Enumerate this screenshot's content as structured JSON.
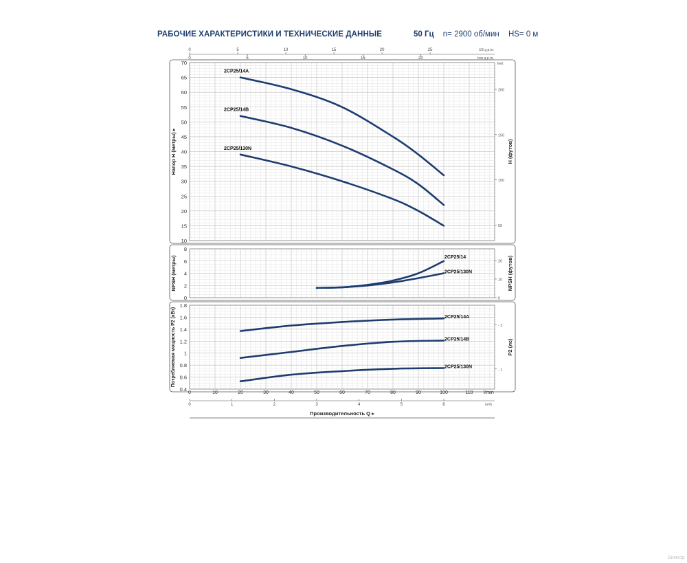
{
  "header": {
    "title": "РАБОЧИЕ ХАРАКТЕРИСТИКИ И ТЕХНИЧЕСКИЕ ДАННЫЕ",
    "frequency": "50 Гц",
    "speed": "n= 2900 об/мин",
    "hs": "HS= 0 м"
  },
  "watermark": "Вимхор",
  "colors": {
    "curve": "#1d3d6f",
    "grid": "#c9c9c9",
    "frame": "#555555",
    "text": "#1d3d6f"
  },
  "top_axes": {
    "us_gpm": {
      "label": "US g.p.m.",
      "ticks": [
        "0",
        "5",
        "10",
        "15",
        "20",
        "25"
      ]
    },
    "imp_gpm": {
      "label": "Imp g.p.m.",
      "ticks": [
        "0",
        "5",
        "10",
        "15",
        "20"
      ]
    }
  },
  "bottom_axes": {
    "lmin": {
      "label": "l/min",
      "ticks": [
        "0",
        "10",
        "20",
        "30",
        "40",
        "50",
        "60",
        "70",
        "80",
        "90",
        "100",
        "110"
      ]
    },
    "m3h": {
      "label": "m³/h",
      "ticks": [
        "0",
        "1",
        "2",
        "3",
        "4",
        "5",
        "6"
      ]
    },
    "xlabel": "Производительность Q"
  },
  "chart_data": [
    {
      "type": "line",
      "panel": "head",
      "ylabel": "Напор H (метры)",
      "y2label": "H (футов)",
      "y2unit": "feet",
      "ylim": [
        10,
        70
      ],
      "yticks": [
        "10",
        "15",
        "20",
        "25",
        "30",
        "35",
        "40",
        "45",
        "50",
        "55",
        "60",
        "65",
        "70"
      ],
      "y2ticks": [
        "50",
        "100",
        "150",
        "200"
      ],
      "xlim": [
        0,
        120
      ],
      "grid": true,
      "series": [
        {
          "name": "2CP25/14A",
          "x": [
            20,
            40,
            60,
            80,
            90,
            100
          ],
          "y": [
            65,
            61,
            55,
            45,
            39,
            32
          ]
        },
        {
          "name": "2CP25/14B",
          "x": [
            20,
            40,
            60,
            80,
            90,
            100
          ],
          "y": [
            52,
            48,
            42,
            34,
            29,
            22
          ]
        },
        {
          "name": "2CP25/130N",
          "x": [
            20,
            40,
            60,
            80,
            90,
            100
          ],
          "y": [
            39,
            35,
            30,
            24,
            20,
            15
          ]
        }
      ]
    },
    {
      "type": "line",
      "panel": "npsh",
      "ylabel": "NPSH (метры)",
      "y2label": "NPSH (футов)",
      "ylim": [
        0,
        8
      ],
      "yticks": [
        "0",
        "2",
        "4",
        "6",
        "8"
      ],
      "y2ticks": [
        "0",
        "10",
        "20"
      ],
      "xlim": [
        0,
        120
      ],
      "grid": true,
      "series": [
        {
          "name": "2CP25/14",
          "x": [
            50,
            60,
            70,
            80,
            90,
            100
          ],
          "y": [
            1.6,
            1.7,
            2.1,
            2.8,
            4.0,
            6.0
          ]
        },
        {
          "name": "2CP25/130N",
          "x": [
            50,
            60,
            70,
            80,
            90,
            100
          ],
          "y": [
            1.6,
            1.7,
            2.0,
            2.5,
            3.2,
            4.0
          ]
        }
      ]
    },
    {
      "type": "line",
      "panel": "power",
      "ylabel": "Потребляемая мощность P2 (кВт)",
      "y2label": "P2 (лс)",
      "ylim": [
        0.4,
        1.8
      ],
      "yticks": [
        "0.4",
        "0.6",
        "0.8",
        "1",
        "1.2",
        "1.4",
        "1.6",
        "1.8"
      ],
      "y2ticks": [
        "1",
        "2"
      ],
      "xlim": [
        0,
        120
      ],
      "grid": true,
      "series": [
        {
          "name": "2CP25/14A",
          "x": [
            20,
            40,
            60,
            80,
            100
          ],
          "y": [
            1.37,
            1.46,
            1.52,
            1.56,
            1.58
          ]
        },
        {
          "name": "2CP25/14B",
          "x": [
            20,
            40,
            60,
            80,
            100
          ],
          "y": [
            0.92,
            1.02,
            1.12,
            1.19,
            1.21
          ]
        },
        {
          "name": "2CP25/130N",
          "x": [
            20,
            40,
            60,
            80,
            100
          ],
          "y": [
            0.53,
            0.64,
            0.7,
            0.74,
            0.75
          ]
        }
      ]
    }
  ]
}
